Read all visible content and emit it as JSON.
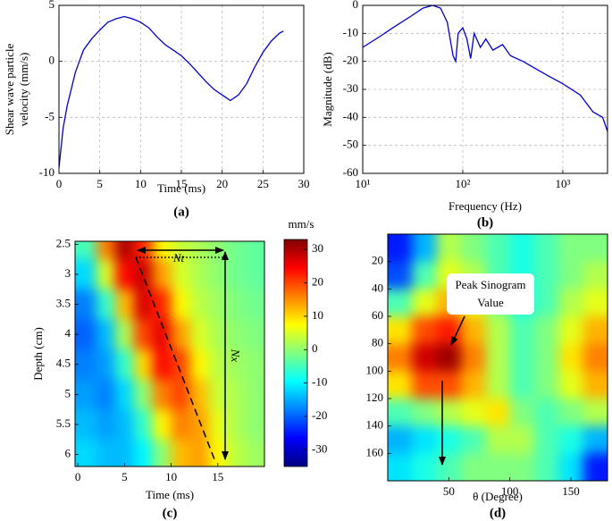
{
  "chart_data": [
    {
      "type": "line",
      "panel_label": "(a)",
      "xlabel": "Time (ms)",
      "ylabel": [
        "Shear wave particle",
        "velocity (mm/s)"
      ],
      "x": [
        0,
        0.5,
        1,
        1.5,
        2,
        2.5,
        3,
        4,
        5,
        6,
        7,
        8,
        9,
        10,
        11,
        12,
        13,
        14,
        15,
        16,
        17,
        18,
        19,
        20,
        21,
        22,
        23,
        24,
        25,
        26,
        27,
        27.5
      ],
      "series": [
        {
          "color": "#0000cc",
          "values": [
            -9.5,
            -6,
            -4,
            -2.5,
            -1,
            0,
            1,
            2,
            2.8,
            3.5,
            3.8,
            4,
            3.8,
            3.5,
            3,
            2.2,
            1.5,
            1,
            0.5,
            -0.2,
            -1,
            -1.8,
            -2.5,
            -3,
            -3.5,
            -3,
            -2,
            -0.5,
            0.8,
            1.8,
            2.5,
            2.7
          ]
        }
      ],
      "xlim": [
        0,
        30
      ],
      "xticks": [
        0,
        5,
        10,
        15,
        20,
        25,
        30
      ],
      "ylim": [
        -10,
        5
      ],
      "yticks": [
        -10,
        -5,
        0,
        5
      ],
      "grid": true
    },
    {
      "type": "line",
      "panel_label": "(b)",
      "xlabel": "Frequency (Hz)",
      "ylabel": [
        "Magnitude (dB)"
      ],
      "xscale": "log",
      "x": [
        10,
        15,
        20,
        30,
        40,
        50,
        60,
        70,
        80,
        85,
        90,
        100,
        110,
        120,
        130,
        150,
        170,
        200,
        250,
        300,
        400,
        500,
        700,
        1000,
        1500,
        2000,
        2500,
        2800
      ],
      "series": [
        {
          "color": "#0000cc",
          "values": [
            -15,
            -11,
            -8,
            -4,
            -1,
            0,
            -1,
            -6,
            -18,
            -20,
            -10,
            -8,
            -12,
            -19,
            -10,
            -15,
            -12,
            -16,
            -14,
            -18,
            -20,
            -22,
            -25,
            -28,
            -32,
            -38,
            -40,
            -45
          ]
        }
      ],
      "xlim": [
        10,
        2800
      ],
      "xticks": [
        {
          "value": 10,
          "label": "10¹"
        },
        {
          "value": 100,
          "label": "10²"
        },
        {
          "value": 1000,
          "label": "10³"
        }
      ],
      "ylim": [
        -60,
        0
      ],
      "yticks": [
        -60,
        -50,
        -40,
        -30,
        -20,
        -10,
        0
      ],
      "grid": true
    },
    {
      "type": "heatmap",
      "panel_label": "(c)",
      "xlabel": "Time (ms)",
      "ylabel": [
        "Depth (cm)"
      ],
      "colorbar_label": "mm/s",
      "annotations": [
        "Nt",
        "Nx"
      ],
      "x": [
        1,
        3,
        5,
        7,
        9,
        11,
        13,
        15,
        17,
        19
      ],
      "y": [
        2.5,
        3,
        3.5,
        4,
        4.5,
        5,
        5.5,
        6
      ],
      "values": [
        [
          -5,
          16,
          30,
          22,
          8,
          4,
          2,
          0,
          -2,
          -3
        ],
        [
          -12,
          5,
          24,
          28,
          14,
          5,
          2,
          0,
          -2,
          -3
        ],
        [
          -18,
          -6,
          12,
          27,
          22,
          8,
          3,
          1,
          -1,
          -2
        ],
        [
          -20,
          -14,
          2,
          20,
          26,
          14,
          5,
          2,
          0,
          -1
        ],
        [
          -18,
          -16,
          -6,
          10,
          24,
          20,
          8,
          3,
          1,
          0
        ],
        [
          -16,
          -18,
          -12,
          0,
          16,
          20,
          12,
          4,
          2,
          0
        ],
        [
          -14,
          -16,
          -14,
          -6,
          8,
          16,
          14,
          6,
          2,
          0
        ],
        [
          -12,
          -14,
          -14,
          -10,
          0,
          12,
          14,
          8,
          3,
          1
        ]
      ],
      "xlim": [
        -0.3,
        20
      ],
      "xticks": [
        0,
        5,
        10,
        15
      ],
      "ylim": [
        6.2,
        2.45
      ],
      "yticks": [
        2.5,
        3,
        3.5,
        4,
        4.5,
        5,
        5.5,
        6
      ],
      "clim": [
        -35,
        33
      ],
      "cticks": [
        -30,
        -20,
        -10,
        0,
        10,
        20,
        30
      ],
      "colormap": "jet"
    },
    {
      "type": "heatmap",
      "panel_label": "(d)",
      "xlabel": "θ  (Degree)",
      "annotations": [
        "Peak Sinogram",
        "Value"
      ],
      "x": [
        10,
        30,
        50,
        70,
        90,
        110,
        130,
        150,
        170
      ],
      "y": [
        10,
        30,
        50,
        70,
        90,
        110,
        130,
        150,
        170
      ],
      "values": [
        [
          0.15,
          0.3,
          0.55,
          0.5,
          0.45,
          0.4,
          0.45,
          0.5,
          0.5
        ],
        [
          0.2,
          0.45,
          0.6,
          0.55,
          0.45,
          0.4,
          0.45,
          0.5,
          0.55
        ],
        [
          0.45,
          0.6,
          0.7,
          0.6,
          0.5,
          0.4,
          0.45,
          0.55,
          0.6
        ],
        [
          0.65,
          0.8,
          0.85,
          0.7,
          0.55,
          0.45,
          0.5,
          0.6,
          0.7
        ],
        [
          0.75,
          0.92,
          0.97,
          0.75,
          0.55,
          0.45,
          0.5,
          0.65,
          0.75
        ],
        [
          0.65,
          0.8,
          0.8,
          0.7,
          0.55,
          0.45,
          0.5,
          0.6,
          0.7
        ],
        [
          0.45,
          0.5,
          0.55,
          0.6,
          0.65,
          0.5,
          0.45,
          0.5,
          0.55
        ],
        [
          0.3,
          0.35,
          0.4,
          0.45,
          0.55,
          0.55,
          0.45,
          0.4,
          0.3
        ],
        [
          0.35,
          0.4,
          0.45,
          0.5,
          0.5,
          0.5,
          0.45,
          0.35,
          0.15
        ]
      ],
      "xlim": [
        0,
        180
      ],
      "xticks": [
        50,
        100,
        150
      ],
      "ylim": [
        180,
        0
      ],
      "yticks": [
        20,
        40,
        60,
        80,
        100,
        120,
        140,
        160
      ],
      "clim": [
        0,
        1
      ],
      "colormap": "jet"
    }
  ]
}
